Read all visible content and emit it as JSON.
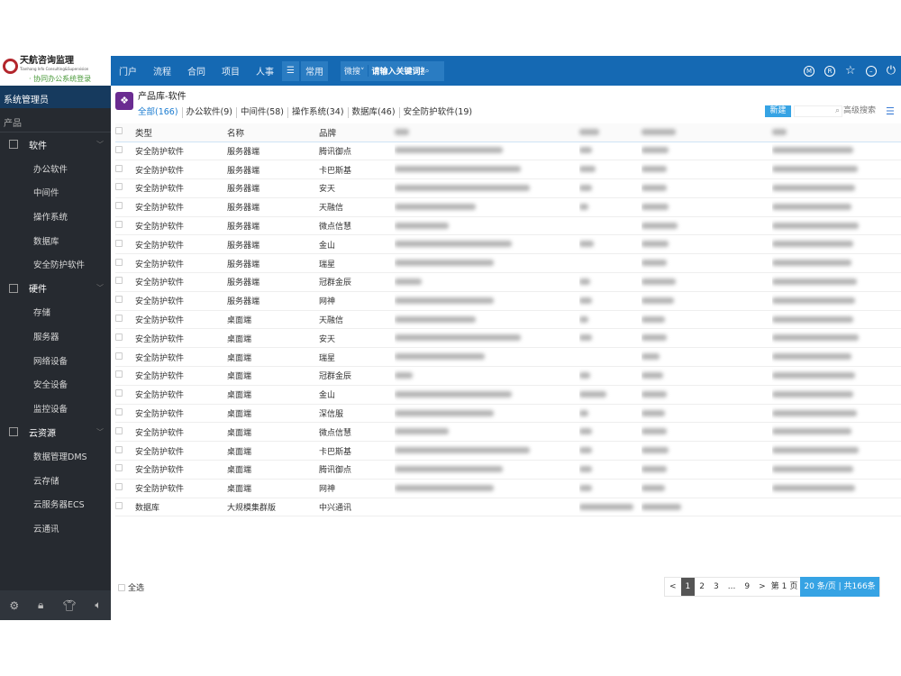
{
  "brand": {
    "name": "天航咨询监理",
    "name_en": "Tianhang Info Consulting&Supervision",
    "subtitle": "· 协同办公系统登录"
  },
  "topbar": {
    "nav": [
      "门户",
      "流程",
      "合同",
      "项目",
      "人事"
    ],
    "menu_icon": "hamburger-icon",
    "common": "常用",
    "search_scope": "微搜",
    "search_placeholder": "请输入关键词搜索",
    "right_icons": [
      "m-circle-icon",
      "r-circle-icon",
      "star-icon",
      "minus-circle-icon",
      "power-icon"
    ]
  },
  "sidebar": {
    "user": "系统管理员",
    "section": "产品",
    "groups": [
      {
        "label": "软件",
        "items": [
          "办公软件",
          "中间件",
          "操作系统",
          "数据库",
          "安全防护软件"
        ]
      },
      {
        "label": "硬件",
        "items": [
          "存储",
          "服务器",
          "网络设备",
          "安全设备",
          "监控设备"
        ]
      },
      {
        "label": "云资源",
        "items": [
          "数据管理DMS",
          "云存储",
          "云服务器ECS",
          "云通讯"
        ]
      }
    ],
    "footer_icons": [
      "settings-icon",
      "lock-icon",
      "shirt-icon",
      "speaker-icon"
    ]
  },
  "page": {
    "title": "产品库-软件",
    "filters": [
      "全部(166)",
      "办公软件(9)",
      "中间件(58)",
      "操作系统(34)",
      "数据库(46)",
      "安全防护软件(19)"
    ],
    "new_label": "新建",
    "advanced_search": "高级搜索"
  },
  "table": {
    "columns": [
      "类型",
      "名称",
      "品牌"
    ],
    "rows": [
      [
        "安全防护软件",
        "服务器端",
        "腾讯御点"
      ],
      [
        "安全防护软件",
        "服务器端",
        "卡巴斯基"
      ],
      [
        "安全防护软件",
        "服务器端",
        "安天"
      ],
      [
        "安全防护软件",
        "服务器端",
        "天融信"
      ],
      [
        "安全防护软件",
        "服务器端",
        "微点信慧"
      ],
      [
        "安全防护软件",
        "服务器端",
        "金山"
      ],
      [
        "安全防护软件",
        "服务器端",
        "瑞星"
      ],
      [
        "安全防护软件",
        "服务器端",
        "冠群金辰"
      ],
      [
        "安全防护软件",
        "服务器端",
        "网神"
      ],
      [
        "安全防护软件",
        "桌面端",
        "天融信"
      ],
      [
        "安全防护软件",
        "桌面端",
        "安天"
      ],
      [
        "安全防护软件",
        "桌面端",
        "瑞星"
      ],
      [
        "安全防护软件",
        "桌面端",
        "冠群金辰"
      ],
      [
        "安全防护软件",
        "桌面端",
        "金山"
      ],
      [
        "安全防护软件",
        "桌面端",
        "深信服"
      ],
      [
        "安全防护软件",
        "桌面端",
        "微点信慧"
      ],
      [
        "安全防护软件",
        "桌面端",
        "卡巴斯基"
      ],
      [
        "安全防护软件",
        "桌面端",
        "腾讯御点"
      ],
      [
        "安全防护软件",
        "桌面端",
        "网神"
      ],
      [
        "数据库",
        "大规模集群版",
        "中兴通讯"
      ]
    ]
  },
  "footer": {
    "select_all": "全选",
    "pager": {
      "prev": "<",
      "pages": [
        "1",
        "2",
        "3",
        "...",
        "9"
      ],
      "current": "1",
      "next": ">",
      "goto_prefix": "第",
      "goto_value": "1",
      "goto_suffix": "页",
      "info": "20 条/页 | 共166条"
    }
  }
}
